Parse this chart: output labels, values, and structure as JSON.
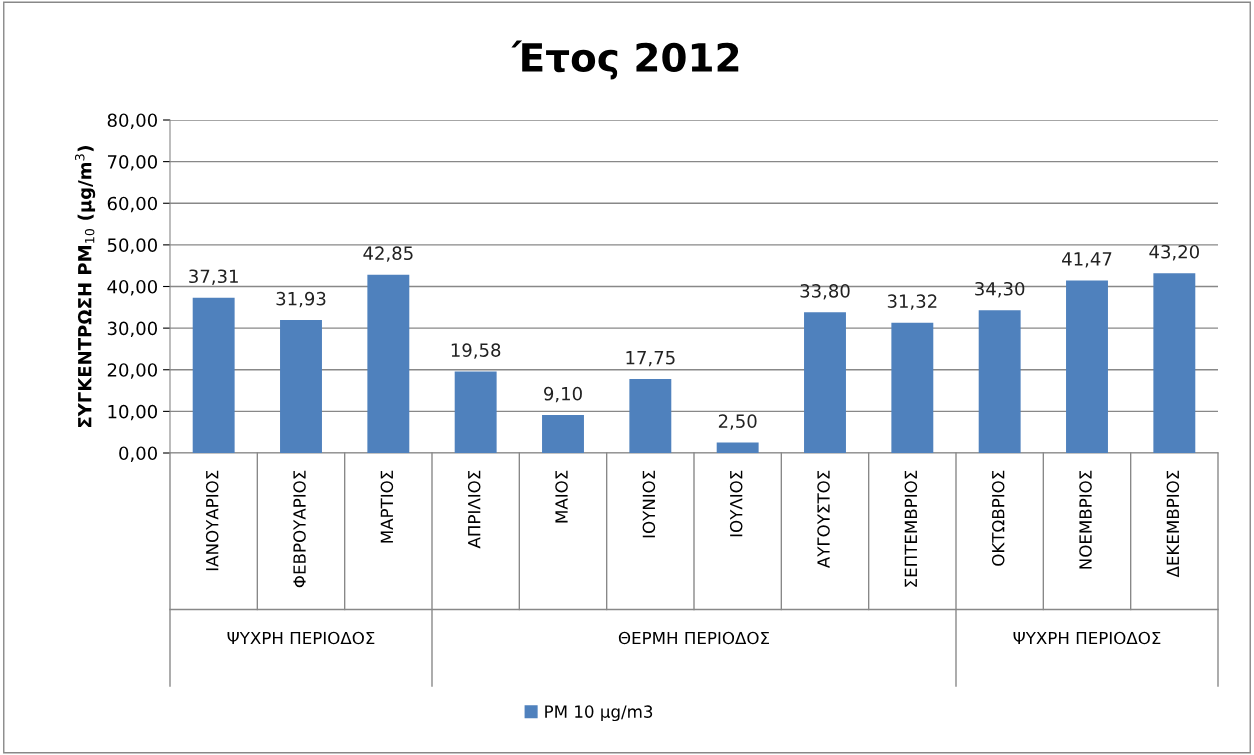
{
  "chart_data": {
    "type": "bar",
    "title": "Έτος 2012",
    "ylabel": "ΣΥΓΚΕΝΤΡΩΣΗ PM$_{10}$ (μg/m$^{3}$)",
    "categories": [
      "ΙΑΝΟΥΑΡΙΟΣ",
      "ΦΕΒΡΟΥΑΡΙΟΣ",
      "ΜΑΡΤΙΟΣ",
      "ΑΠΡΙΛΙΟΣ",
      "ΜΑΙΟΣ",
      "ΙΟΥΝΙΟΣ",
      "ΙΟΥΛΙΟΣ",
      "ΑΥΓΟΥΣΤΟΣ",
      "ΣΕΠΤΕΜΒΡΙΟΣ",
      "ΟΚΤΩΒΡΙΟΣ",
      "ΝΟΕΜΒΡΙΟΣ",
      "ΔΕΚΕΜΒΡΙΟΣ"
    ],
    "series": [
      {
        "name": "PM 10 μg/m3",
        "color": "#4f81bd",
        "values": [
          37.31,
          31.93,
          42.85,
          19.58,
          9.1,
          17.75,
          2.5,
          33.8,
          31.32,
          34.3,
          41.47,
          43.2
        ],
        "value_labels": [
          "37,31",
          "31,93",
          "42,85",
          "19,58",
          "9,10",
          "17,75",
          "2,50",
          "33,80",
          "31,32",
          "34,30",
          "41,47",
          "43,20"
        ]
      }
    ],
    "annotations": [
      "ΨΥΧΡΗ ΠΕΡΙΟΔΟΣ",
      "ΘΕΡΜΗ ΠΕΡΙΟΔΟΣ",
      "ΨΥΧΡΗ ΠΕΡΙΟΔΟΣ"
    ],
    "ylim": [
      0,
      80
    ],
    "yticks": [
      {
        "value": 0,
        "label": "0,00"
      },
      {
        "value": 10,
        "label": "10,00"
      },
      {
        "value": 20,
        "label": "20,00"
      },
      {
        "value": 30,
        "label": "30,00"
      },
      {
        "value": 40,
        "label": "40,00"
      },
      {
        "value": 50,
        "label": "50,00"
      },
      {
        "value": 60,
        "label": "60,00"
      },
      {
        "value": 70,
        "label": "70,00"
      },
      {
        "value": 80,
        "label": "80,00"
      }
    ],
    "grid": "y",
    "legend": "bottom"
  }
}
